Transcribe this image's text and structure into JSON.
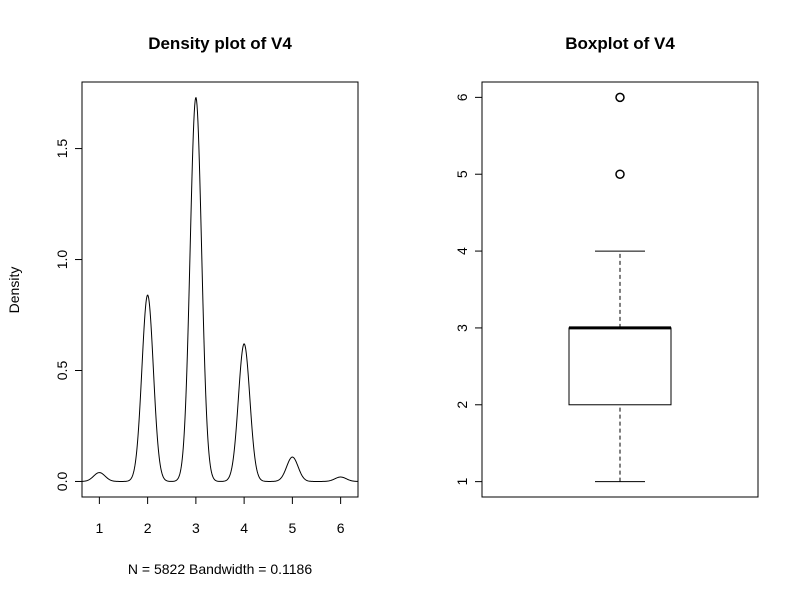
{
  "chart_data": [
    {
      "type": "line",
      "title": "Density plot of V4",
      "xlabel": "N = 5822   Bandwidth = 0.1186",
      "ylabel": "Density",
      "xlim": [
        0.64,
        6.36
      ],
      "ylim": [
        -0.07,
        1.8
      ],
      "x_ticks": [
        1,
        2,
        3,
        4,
        5,
        6
      ],
      "x_tick_labels": [
        "1",
        "2",
        "3",
        "4",
        "5",
        "6"
      ],
      "y_ticks": [
        0.0,
        0.5,
        1.0,
        1.5
      ],
      "y_tick_labels": [
        "0.0",
        "0.5",
        "1.0",
        "1.5"
      ],
      "grid": false,
      "series": [
        {
          "curve": "sum_of_gaussian_peaks",
          "bandwidth": 0.1186,
          "peaks": [
            {
              "x": 1,
              "height": 0.04
            },
            {
              "x": 2,
              "height": 0.84
            },
            {
              "x": 3,
              "height": 1.73
            },
            {
              "x": 4,
              "height": 0.62
            },
            {
              "x": 5,
              "height": 0.11
            },
            {
              "x": 6,
              "height": 0.02
            }
          ],
          "x_range": [
            0.64,
            6.36
          ]
        }
      ]
    },
    {
      "type": "boxplot",
      "title": "Boxplot of V4",
      "xlabel": "",
      "ylabel": "",
      "ylim": [
        0.8,
        6.2
      ],
      "y_ticks": [
        1,
        2,
        3,
        4,
        5,
        6
      ],
      "y_tick_labels": [
        "1",
        "2",
        "3",
        "4",
        "5",
        "6"
      ],
      "grid": false,
      "box": {
        "whisker_low": 1,
        "q1": 2,
        "median": 3,
        "q3": 3,
        "whisker_high": 4,
        "outliers": [
          5,
          6
        ]
      }
    }
  ]
}
